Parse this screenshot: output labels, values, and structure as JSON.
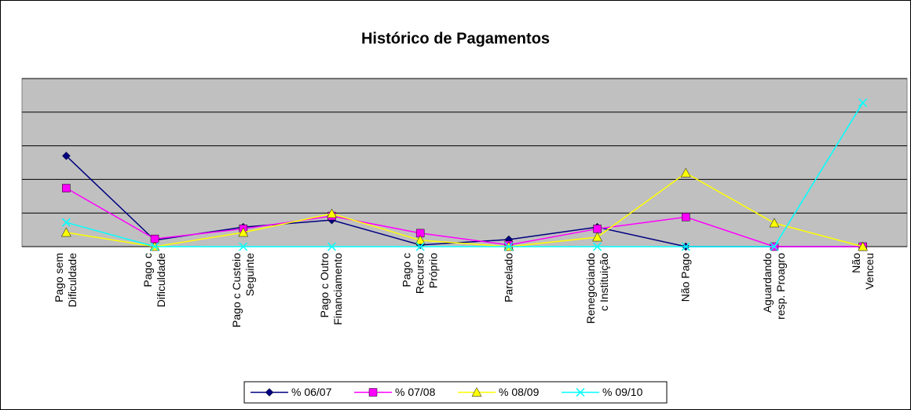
{
  "chart_data": {
    "type": "line",
    "title": "Histórico de Pagamentos",
    "categories": [
      "Pago sem\nDificuldade",
      "Pago c\nDificuldade",
      "Pago c Custeio\nSeguinte",
      "Pago c Outro\nFinanciamento",
      "Pago c\nRecurso\nPróprio",
      "Parcelado",
      "Renegociando\nc Instituição",
      "Não Pago",
      "Aguardando\nresp. Proagro",
      "Não Venceu"
    ],
    "series": [
      {
        "name": "% 06/07",
        "color": "#000080",
        "marker": "diamond",
        "values": [
          27,
          1.9,
          5.8,
          7.9,
          0.5,
          2.1,
          5.8,
          0,
          0,
          0
        ]
      },
      {
        "name": "% 07/08",
        "color": "#ff00ff",
        "marker": "square",
        "values": [
          17.4,
          2.3,
          5.3,
          9.1,
          4,
          0.5,
          5.3,
          8.8,
          0,
          0
        ]
      },
      {
        "name": "% 08/09",
        "color": "#ffff00",
        "marker": "triangle",
        "values": [
          4.2,
          0,
          4.2,
          9.8,
          1.9,
          0,
          2.8,
          21.9,
          7,
          0
        ]
      },
      {
        "name": "% 09/10",
        "color": "#00ffff",
        "marker": "x",
        "values": [
          7.2,
          0,
          0,
          0,
          0,
          0,
          0,
          0,
          0,
          42.8
        ]
      }
    ],
    "ylim": [
      0,
      50
    ],
    "yticks": [
      0,
      10,
      20,
      30,
      40,
      50
    ],
    "grid": true,
    "legend": "bottom"
  }
}
